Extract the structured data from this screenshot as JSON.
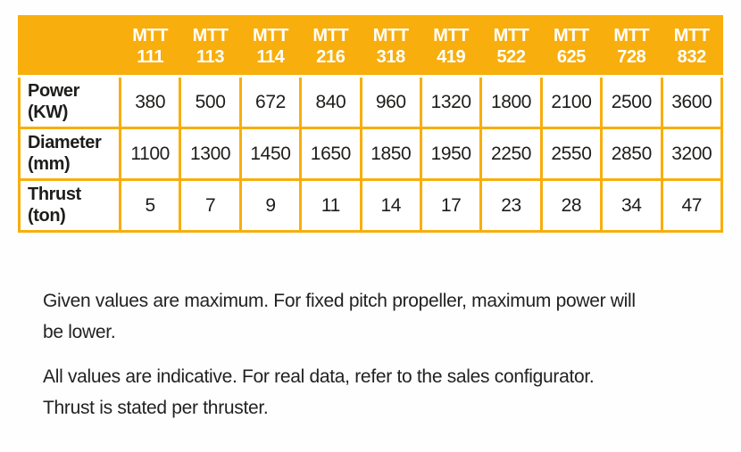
{
  "table": {
    "corner_label": "",
    "columns": [
      {
        "series": "MTT",
        "model": "111"
      },
      {
        "series": "MTT",
        "model": "113"
      },
      {
        "series": "MTT",
        "model": "114"
      },
      {
        "series": "MTT",
        "model": "216"
      },
      {
        "series": "MTT",
        "model": "318"
      },
      {
        "series": "MTT",
        "model": "419"
      },
      {
        "series": "MTT",
        "model": "522"
      },
      {
        "series": "MTT",
        "model": "625"
      },
      {
        "series": "MTT",
        "model": "728"
      },
      {
        "series": "MTT",
        "model": "832"
      }
    ],
    "rows": [
      {
        "label_line1": "Power",
        "label_line2": "(KW)",
        "values": [
          "380",
          "500",
          "672",
          "840",
          "960",
          "1320",
          "1800",
          "2100",
          "2500",
          "3600"
        ]
      },
      {
        "label_line1": "Diameter",
        "label_line2": "(mm)",
        "values": [
          "1100",
          "1300",
          "1450",
          "1650",
          "1850",
          "1950",
          "2250",
          "2550",
          "2850",
          "3200"
        ]
      },
      {
        "label_line1": "Thrust",
        "label_line2": "(ton)",
        "values": [
          "5",
          "7",
          "9",
          "11",
          "14",
          "17",
          "23",
          "28",
          "34",
          "47"
        ]
      }
    ]
  },
  "notes": [
    {
      "lines": [
        "Given values are maximum. For fixed pitch propeller, maximum power will",
        "be lower."
      ]
    },
    {
      "lines": [
        "All values are indicative. For real data, refer to the sales configurator.",
        "Thrust is stated per thruster."
      ]
    }
  ],
  "colors": {
    "accent": "#F8AE0D",
    "header_text": "#FFFFFF",
    "body_text": "#1D1D1B"
  }
}
